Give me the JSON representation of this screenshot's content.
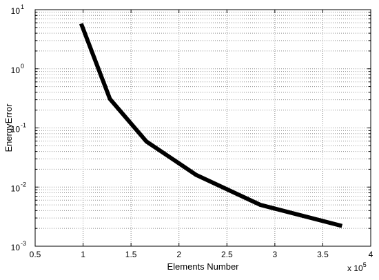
{
  "chart_data": {
    "type": "line",
    "xlabel": "Elements Number",
    "ylabel": "EnergyError",
    "x_scale_label": {
      "base": "x 10",
      "exponent": "5"
    },
    "x_scale_factor": 100000,
    "xlim": [
      0.5,
      4.0
    ],
    "ylim": [
      0.001,
      10
    ],
    "yscale": "log",
    "grid": true,
    "x_ticks": [
      0.5,
      1,
      1.5,
      2,
      2.5,
      3,
      3.5,
      4
    ],
    "x_tick_labels": [
      "0.5",
      "1",
      "1.5",
      "2",
      "2.5",
      "3",
      "3.5",
      "4"
    ],
    "y_ticks": [
      10,
      1,
      0.1,
      0.01,
      0.001
    ],
    "y_tick_labels": [
      {
        "base": "10",
        "exponent": "1"
      },
      {
        "base": "10",
        "exponent": "0"
      },
      {
        "base": "10",
        "exponent": "-1"
      },
      {
        "base": "10",
        "exponent": "-2"
      },
      {
        "base": "10",
        "exponent": "-3"
      }
    ],
    "series": [
      {
        "x": [
          0.98,
          1.28,
          1.66,
          2.18,
          2.85,
          3.7
        ],
        "y": [
          5.8,
          0.31,
          0.059,
          0.016,
          0.005,
          0.0022
        ],
        "color": "#000000"
      }
    ],
    "colors": {
      "line": "#000000",
      "grid": "#8c8c8c",
      "axes": "#000000",
      "background": "#ffffff"
    }
  }
}
